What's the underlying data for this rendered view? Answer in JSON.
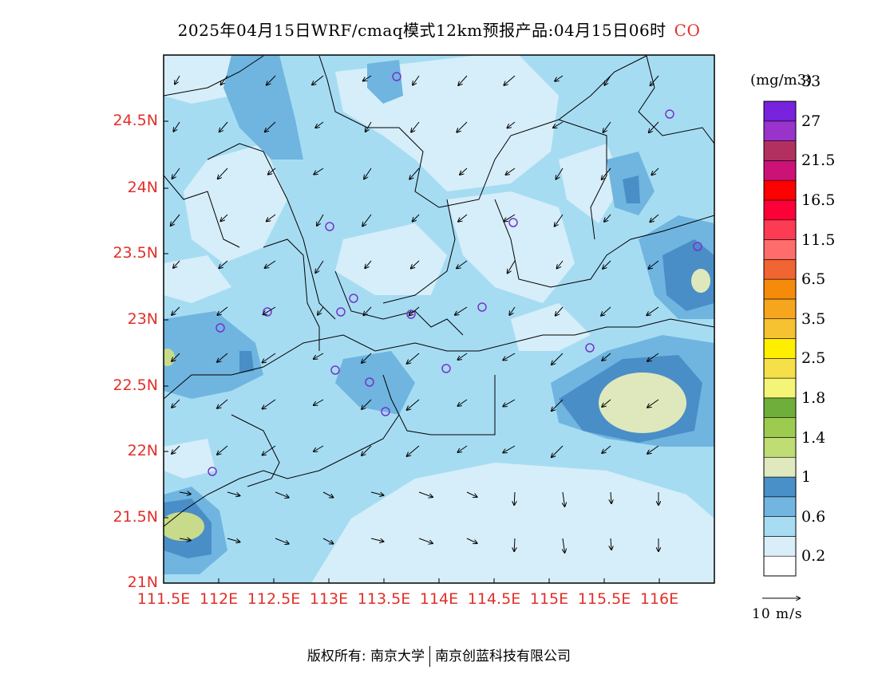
{
  "title": {
    "text": "2025年04月15日WRF/cmaq模式12km预报产品:04月15日06时",
    "species": "CO",
    "species_color": "#e0302a"
  },
  "map": {
    "lat_labels": [
      "24.5N",
      "24N",
      "23.5N",
      "23N",
      "22.5N",
      "22N",
      "21.5N",
      "21N"
    ],
    "lon_labels": [
      "111.5E",
      "112E",
      "112.5E",
      "113E",
      "113.5E",
      "114E",
      "114.5E",
      "115E",
      "115.5E",
      "116E"
    ],
    "axis_label_color": "#e0302a",
    "land_color": "#a6dcf2",
    "low_color": "#d6eef9",
    "mid_color": "#6fb5e0",
    "high_color": "#4a8ec7",
    "peak_color": "#dfe8bc"
  },
  "colorbar": {
    "units": "(mg/m3)",
    "colors": [
      "#ffffff",
      "#d9eef9",
      "#a7dcf3",
      "#72b5e1",
      "#4990c8",
      "#e0e9be",
      "#c0dc74",
      "#9ccb50",
      "#6fae3a",
      "#f4f576",
      "#f5e04a",
      "#ffee00",
      "#f6c231",
      "#f6a51f",
      "#f68b0b",
      "#f06531",
      "#ff6c6c",
      "#fd3b53",
      "#fc0038",
      "#ff0000",
      "#cc1177",
      "#b2305f",
      "#9933cc",
      "#7722dd"
    ],
    "labels": [
      "0.2",
      "0.6",
      "1",
      "1.4",
      "1.8",
      "2.5",
      "3.5",
      "6.5",
      "11.5",
      "16.5",
      "21.5",
      "27",
      "33"
    ]
  },
  "wind_reference": {
    "label": "10 m/s"
  },
  "footer": {
    "copyright": "版权所有: 南京大学",
    "company": "南京创蓝科技有限公司"
  }
}
